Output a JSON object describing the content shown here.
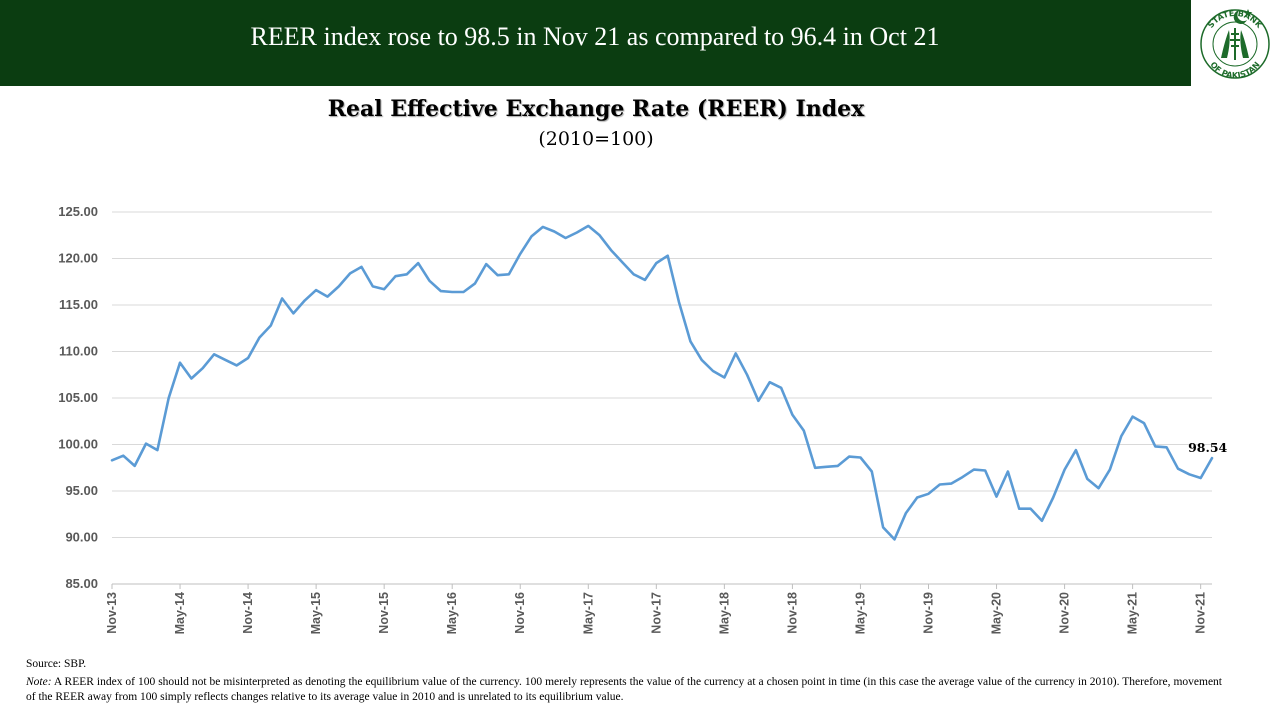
{
  "header": {
    "headline": "REER index rose to 98.5 in Nov 21 as compared to 96.4 in Oct 21",
    "logo": {
      "icon": "sbp-seal-icon",
      "text_top": "STATE BANK",
      "text_bottom": "OF PAKISTAN"
    }
  },
  "colors": {
    "banner": "#0b3d11",
    "line": "#5b9bd5",
    "grid": "#d9d9d9",
    "axis_text": "#595959"
  },
  "chart_data": {
    "type": "line",
    "title": "Real Effective Exchange Rate (REER) Index",
    "subtitle": "(2010=100)",
    "ylim": [
      85,
      125
    ],
    "yticks": [
      "85.00",
      "90.00",
      "95.00",
      "100.00",
      "105.00",
      "110.00",
      "115.00",
      "120.00",
      "125.00"
    ],
    "xticks": [
      "Nov-13",
      "May-14",
      "Nov-14",
      "May-15",
      "Nov-15",
      "May-16",
      "Nov-16",
      "May-17",
      "Nov-17",
      "May-18",
      "Nov-18",
      "May-19",
      "Nov-19",
      "May-20",
      "Nov-20",
      "May-21",
      "Nov-21"
    ],
    "grid": true,
    "legend": "none",
    "series": [
      {
        "start": "Nov-13",
        "end": "Nov-21",
        "values": [
          98.3,
          98.8,
          97.7,
          100.1,
          99.4,
          105.0,
          108.8,
          107.1,
          108.2,
          109.7,
          109.1,
          108.5,
          109.3,
          111.5,
          112.8,
          115.7,
          114.1,
          115.5,
          116.6,
          115.9,
          117.0,
          118.4,
          119.1,
          117.0,
          116.7,
          118.1,
          118.3,
          119.5,
          117.6,
          116.5,
          116.4,
          116.4,
          117.3,
          119.4,
          118.2,
          118.3,
          120.5,
          122.4,
          123.4,
          122.9,
          122.2,
          122.8,
          123.5,
          122.5,
          120.9,
          119.6,
          118.3,
          117.7,
          119.5,
          120.3,
          115.3,
          111.1,
          109.1,
          107.9,
          107.2,
          109.8,
          107.5,
          104.7,
          106.7,
          106.1,
          103.2,
          101.5,
          97.5,
          97.6,
          97.7,
          98.7,
          98.6,
          97.1,
          91.1,
          89.8,
          92.6,
          94.3,
          94.7,
          95.7,
          95.8,
          96.5,
          97.3,
          97.2,
          94.4,
          97.1,
          93.1,
          93.1,
          91.8,
          94.3,
          97.3,
          99.4,
          96.3,
          95.3,
          97.3,
          100.9,
          103.0,
          102.3,
          99.8,
          99.7,
          97.4,
          96.8,
          96.4,
          98.54
        ]
      }
    ],
    "annotations": [
      {
        "x": "Nov-21",
        "y": 98.54,
        "label": "98.54"
      }
    ]
  },
  "footer": {
    "source": "Source: SBP.",
    "note_label": "Note:",
    "note_text": " A REER index of 100 should not be misinterpreted as denoting the equilibrium value of the currency. 100 merely represents the value of the currency at a chosen point in time (in this case the average value of the currency in 2010). Therefore, movement of the REER away from 100 simply reflects changes relative to its average value in 2010 and is unrelated to its equilibrium value."
  }
}
